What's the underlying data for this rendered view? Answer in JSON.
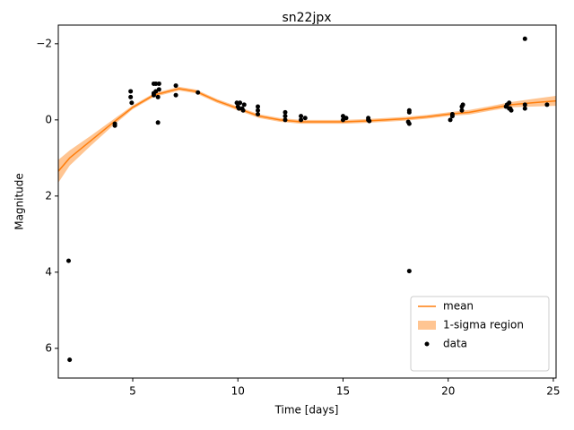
{
  "chart_data": {
    "type": "light-curve",
    "title": "sn22jpx",
    "x_label": "Time [days]",
    "y_label": "Magnitude",
    "xlim": [
      1.46,
      25.13
    ],
    "xticks": [
      5,
      10,
      15,
      20,
      25
    ],
    "ylim": [
      6.78,
      -2.49
    ],
    "yticks": [
      {
        "value": -2,
        "label": "−2"
      },
      0,
      2,
      4,
      6
    ],
    "legend": "lower right",
    "grid": false,
    "series": [
      {
        "name": "mean",
        "type": "line",
        "color": "#ff7f0e",
        "x": [
          1.46,
          2,
          3,
          4,
          5,
          6,
          7.2,
          8,
          9,
          10,
          11,
          12,
          13,
          14,
          15,
          16,
          17,
          18,
          19,
          20,
          21,
          22,
          23,
          24,
          25.13
        ],
        "values": [
          1.35,
          1.0,
          0.55,
          0.1,
          -0.33,
          -0.65,
          -0.82,
          -0.75,
          -0.5,
          -0.3,
          -0.1,
          0.0,
          0.05,
          0.05,
          0.05,
          0.03,
          0.0,
          -0.03,
          -0.08,
          -0.15,
          -0.2,
          -0.3,
          -0.4,
          -0.45,
          -0.5
        ]
      },
      {
        "name": "1-sigma region",
        "type": "band",
        "color": "#ff7f0e",
        "x": [
          1.46,
          2,
          3,
          4,
          5,
          6,
          7.2,
          8,
          9,
          10,
          11,
          12,
          13,
          14,
          15,
          16,
          17,
          18,
          19,
          20,
          21,
          22,
          23,
          24,
          25.13
        ],
        "lower": [
          1.05,
          0.8,
          0.42,
          0.02,
          -0.38,
          -0.7,
          -0.87,
          -0.8,
          -0.55,
          -0.35,
          -0.15,
          -0.05,
          0.0,
          0.0,
          0.0,
          -0.02,
          -0.05,
          -0.08,
          -0.13,
          -0.2,
          -0.26,
          -0.36,
          -0.47,
          -0.55,
          -0.63
        ],
        "upper": [
          1.65,
          1.2,
          0.68,
          0.18,
          -0.28,
          -0.6,
          -0.77,
          -0.7,
          -0.45,
          -0.25,
          -0.05,
          0.05,
          0.1,
          0.1,
          0.1,
          0.08,
          0.05,
          0.02,
          -0.03,
          -0.1,
          -0.14,
          -0.24,
          -0.33,
          -0.35,
          -0.37
        ]
      },
      {
        "name": "data",
        "type": "scatter",
        "color": "#000000",
        "x": [
          1.95,
          2.0,
          4.15,
          4.15,
          4.9,
          4.9,
          4.95,
          6.0,
          6.1,
          6.25,
          6.0,
          6.0,
          6.1,
          6.2,
          6.2,
          6.25,
          7.05,
          7.05,
          8.1,
          9.95,
          10.0,
          10.05,
          10.1,
          10.2,
          10.25,
          10.3,
          10.95,
          10.95,
          10.95,
          12.25,
          12.25,
          12.25,
          13.0,
          13.0,
          13.2,
          15.0,
          15.0,
          15.15,
          16.2,
          16.2,
          16.25,
          18.1,
          18.15,
          18.15,
          18.15,
          18.15,
          20.1,
          20.2,
          20.2,
          20.65,
          20.65,
          20.7,
          22.75,
          22.8,
          22.9,
          22.9,
          22.95,
          23.0,
          23.65,
          23.65,
          23.65,
          24.7
        ],
        "values": [
          3.7,
          6.3,
          0.1,
          0.15,
          -0.75,
          -0.6,
          -0.45,
          -0.95,
          -0.95,
          -0.95,
          -0.7,
          -0.65,
          -0.75,
          -0.6,
          0.07,
          -0.8,
          -0.9,
          -0.65,
          -0.72,
          -0.45,
          -0.35,
          -0.3,
          -0.45,
          -0.3,
          -0.25,
          -0.4,
          -0.15,
          -0.25,
          -0.35,
          -0.2,
          -0.1,
          0.0,
          -0.1,
          0.0,
          -0.05,
          -0.1,
          0.0,
          -0.05,
          -0.05,
          0.0,
          0.03,
          0.05,
          0.1,
          -0.25,
          -0.2,
          3.97,
          0.0,
          -0.15,
          -0.1,
          -0.25,
          -0.35,
          -0.4,
          -0.35,
          -0.4,
          -0.3,
          -0.45,
          -0.3,
          -0.25,
          -0.3,
          -0.4,
          -2.13,
          -0.4
        ]
      }
    ]
  }
}
